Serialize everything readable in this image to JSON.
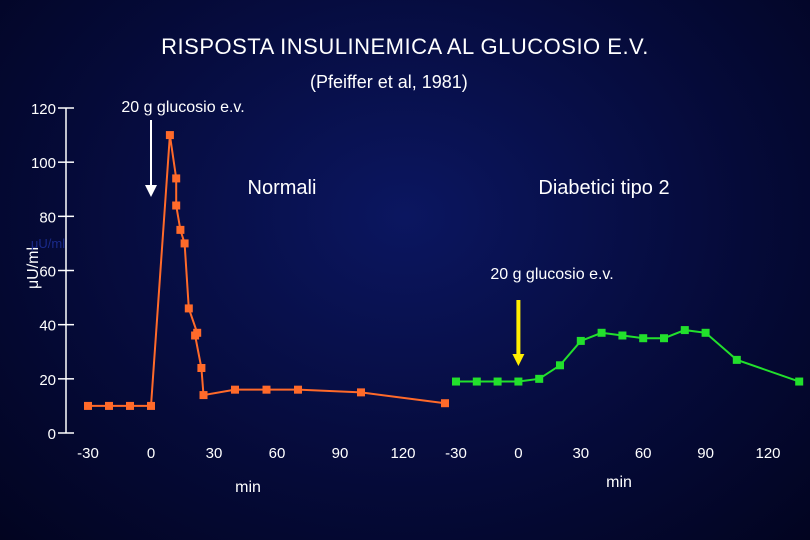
{
  "title": "RISPOSTA INSULINEMICA AL GLUCOSIO E.V.",
  "subtitle": "(Pfeiffer et al, 1981)",
  "colors": {
    "normali": "#ff6a2a",
    "diabetici": "#22e02c",
    "arrow": "#ffee00",
    "text": "#ffffff",
    "axis": "#ffffff"
  },
  "chart_data": [
    {
      "type": "line",
      "title": "Normali",
      "annotation": "20 g glucosio e.v.",
      "annotation_x": 0,
      "xlabel": "min",
      "ylabel": "μU/ml",
      "ylabel_ghost": "μU/ml",
      "xlim": [
        -30,
        120
      ],
      "ylim": [
        0,
        120
      ],
      "xticks": [
        -30,
        0,
        30,
        60,
        90,
        120
      ],
      "yticks": [
        0,
        20,
        40,
        60,
        80,
        100,
        120
      ],
      "series": [
        {
          "name": "Normali",
          "x": [
            -30,
            -20,
            -10,
            0,
            9,
            12,
            12,
            14,
            16,
            18,
            22,
            21,
            24,
            25,
            40,
            55,
            70,
            100,
            140
          ],
          "y": [
            10,
            10,
            10,
            10,
            110,
            94,
            84,
            75,
            70,
            46,
            37,
            36,
            24,
            14,
            16,
            16,
            16,
            15,
            11
          ]
        }
      ]
    },
    {
      "type": "line",
      "title": "Diabetici tipo 2",
      "annotation": "20 g glucosio e.v.",
      "annotation_x": 0,
      "xlabel": "min",
      "xlim": [
        -30,
        120
      ],
      "ylim": [
        0,
        120
      ],
      "xticks": [
        -30,
        0,
        30,
        60,
        90,
        120
      ],
      "series": [
        {
          "name": "Diabetici tipo 2",
          "x": [
            -30,
            -20,
            -10,
            0,
            10,
            20,
            30,
            40,
            50,
            60,
            70,
            80,
            90,
            105,
            135
          ],
          "y": [
            19,
            19,
            19,
            19,
            20,
            25,
            34,
            37,
            36,
            35,
            35,
            38,
            37,
            27,
            19
          ]
        }
      ]
    }
  ]
}
